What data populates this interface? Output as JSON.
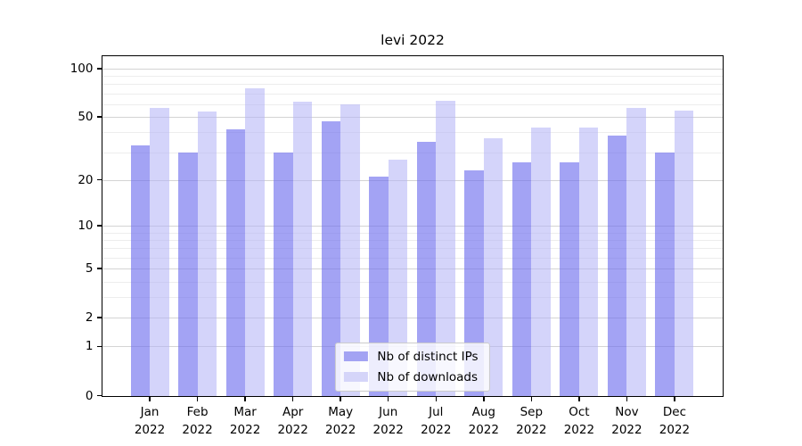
{
  "figure": {
    "background": "#ffffff"
  },
  "chart_data": {
    "type": "bar",
    "title": "levi 2022",
    "categories": [
      "Jan 2022",
      "Feb 2022",
      "Mar 2022",
      "Apr 2022",
      "May 2022",
      "Jun 2022",
      "Jul 2022",
      "Aug 2022",
      "Sep 2022",
      "Oct 2022",
      "Nov 2022",
      "Dec 2022"
    ],
    "series": [
      {
        "name": "Nb of distinct IPs",
        "color": "#a3a3f3",
        "fill": "rgba(107,107,238,0.62)",
        "values": [
          33,
          30,
          42,
          30,
          47,
          21,
          35,
          23,
          26,
          26,
          38,
          30
        ]
      },
      {
        "name": "Nb of downloads",
        "color": "#d5d5f9",
        "fill": "rgba(177,177,246,0.55)",
        "values": [
          57,
          54,
          75,
          62,
          60,
          27,
          63,
          37,
          43,
          43,
          57,
          55
        ]
      }
    ],
    "xlabel": "",
    "ylabel": "",
    "yscale": "symlog",
    "ylim": [
      0,
      120
    ],
    "yticks": [
      0,
      1,
      2,
      5,
      10,
      20,
      50,
      100
    ],
    "minor_yticks": [
      3,
      4,
      6,
      7,
      8,
      9,
      30,
      40,
      60,
      70,
      80,
      90
    ],
    "grid": true,
    "legend_position": "lower center"
  },
  "colors": {
    "grid_major": "#d4d4d4",
    "grid_minor": "#ededed",
    "spine": "#000000",
    "text": "#000000",
    "legend_border": "#cccccc",
    "legend_bg": "rgba(255,255,255,0.8)"
  }
}
